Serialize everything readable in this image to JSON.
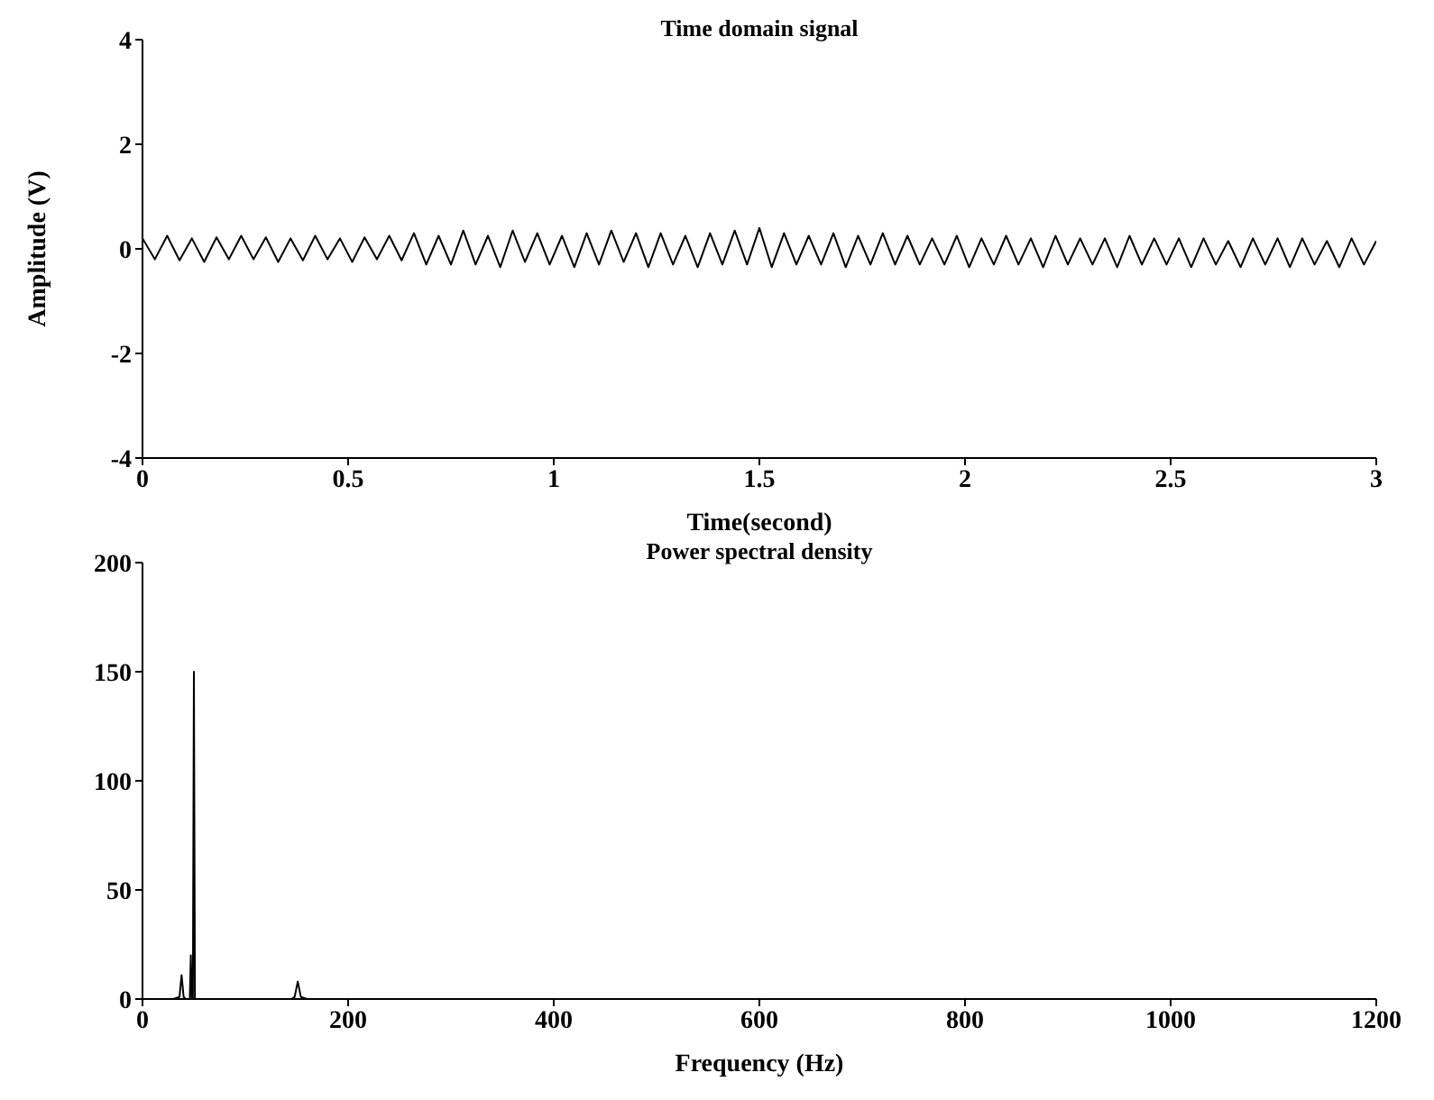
{
  "chart_data": [
    {
      "type": "line",
      "title": "Time domain signal",
      "xlabel": "Time(second)",
      "ylabel": "Amplitude (V)",
      "xlim": [
        0,
        3
      ],
      "xticks": [
        0,
        0.5,
        1,
        1.5,
        2,
        2.5,
        3
      ],
      "ylim": [
        -4,
        4
      ],
      "yticks": [
        -4,
        -2,
        0,
        2,
        4
      ],
      "x": [
        0,
        0.03,
        0.06,
        0.09,
        0.12,
        0.15,
        0.18,
        0.21,
        0.24,
        0.27,
        0.3,
        0.33,
        0.36,
        0.39,
        0.42,
        0.45,
        0.48,
        0.51,
        0.54,
        0.57,
        0.6,
        0.63,
        0.66,
        0.69,
        0.72,
        0.75,
        0.78,
        0.81,
        0.84,
        0.87,
        0.9,
        0.93,
        0.96,
        0.99,
        1.02,
        1.05,
        1.08,
        1.11,
        1.14,
        1.17,
        1.2,
        1.23,
        1.26,
        1.29,
        1.32,
        1.35,
        1.38,
        1.41,
        1.44,
        1.47,
        1.5,
        1.53,
        1.56,
        1.59,
        1.62,
        1.65,
        1.68,
        1.71,
        1.74,
        1.77,
        1.8,
        1.83,
        1.86,
        1.89,
        1.92,
        1.95,
        1.98,
        2.01,
        2.04,
        2.07,
        2.1,
        2.13,
        2.16,
        2.19,
        2.22,
        2.25,
        2.28,
        2.31,
        2.34,
        2.37,
        2.4,
        2.43,
        2.46,
        2.49,
        2.52,
        2.55,
        2.58,
        2.61,
        2.64,
        2.67,
        2.7,
        2.73,
        2.76,
        2.79,
        2.82,
        2.85,
        2.88,
        2.91,
        2.94,
        2.97,
        3
      ],
      "series": [
        {
          "color": "#000000",
          "values": [
            0.2,
            -0.2,
            0.25,
            -0.22,
            0.2,
            -0.25,
            0.22,
            -0.2,
            0.25,
            -0.2,
            0.22,
            -0.25,
            0.2,
            -0.22,
            0.25,
            -0.2,
            0.2,
            -0.25,
            0.22,
            -0.2,
            0.25,
            -0.22,
            0.3,
            -0.3,
            0.25,
            -0.3,
            0.35,
            -0.3,
            0.25,
            -0.35,
            0.35,
            -0.25,
            0.3,
            -0.3,
            0.25,
            -0.35,
            0.3,
            -0.3,
            0.35,
            -0.25,
            0.3,
            -0.35,
            0.3,
            -0.3,
            0.25,
            -0.35,
            0.3,
            -0.3,
            0.35,
            -0.3,
            0.4,
            -0.35,
            0.3,
            -0.3,
            0.25,
            -0.3,
            0.3,
            -0.35,
            0.25,
            -0.3,
            0.3,
            -0.3,
            0.25,
            -0.3,
            0.2,
            -0.3,
            0.25,
            -0.35,
            0.2,
            -0.3,
            0.25,
            -0.3,
            0.2,
            -0.35,
            0.25,
            -0.3,
            0.2,
            -0.3,
            0.2,
            -0.35,
            0.25,
            -0.3,
            0.2,
            -0.3,
            0.2,
            -0.35,
            0.2,
            -0.3,
            0.15,
            -0.35,
            0.2,
            -0.3,
            0.2,
            -0.35,
            0.2,
            -0.3,
            0.15,
            -0.35,
            0.2,
            -0.3,
            0.15
          ]
        }
      ]
    },
    {
      "type": "line",
      "title": "Power spectral density",
      "xlabel": "Frequency (Hz)",
      "xlim": [
        0,
        1200
      ],
      "xticks": [
        0,
        200,
        400,
        600,
        800,
        1000,
        1200
      ],
      "ylim": [
        0,
        200
      ],
      "yticks": [
        0,
        50,
        100,
        150,
        200
      ],
      "x": [
        0,
        30,
        36,
        38,
        40,
        42,
        46,
        47,
        48,
        49,
        50,
        51,
        52,
        55,
        100,
        145,
        148,
        151,
        154,
        160,
        1200
      ],
      "series": [
        {
          "color": "#000000",
          "values": [
            0,
            0,
            1,
            11,
            1,
            0,
            0,
            20,
            0,
            0,
            150,
            0,
            0,
            0,
            0,
            0,
            1,
            8,
            1,
            0,
            0
          ]
        }
      ]
    }
  ]
}
